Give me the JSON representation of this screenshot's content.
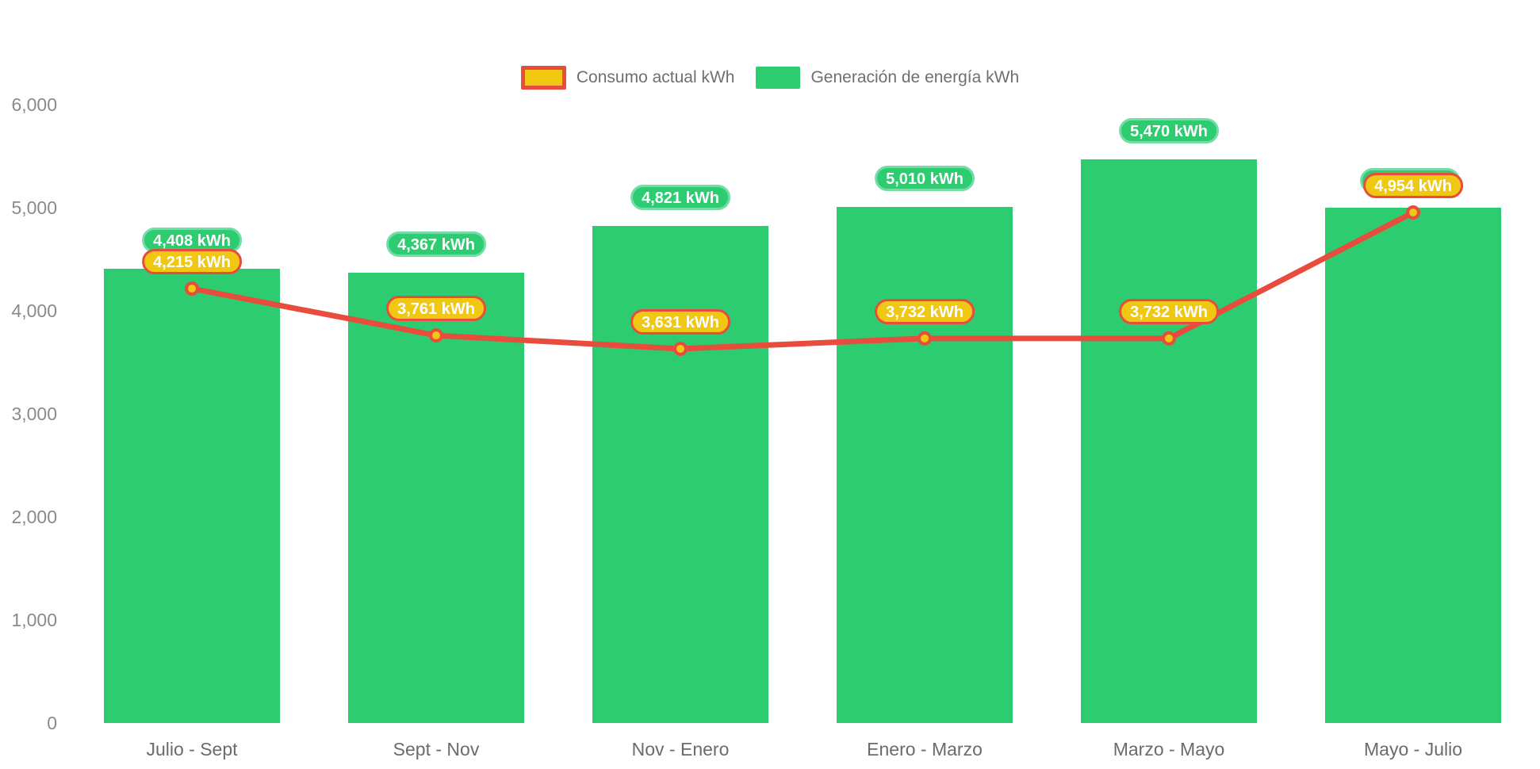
{
  "legend": {
    "consumo_label": "Consumo actual kWh",
    "generacion_label": "Generación de energía kWh"
  },
  "colors": {
    "bar_green": "#2ecc71",
    "pill_green_border": "#74dca6",
    "line_red": "#e74c3c",
    "marker_gold": "#f0c713",
    "pill_gold": "#f0c713",
    "y_axis_text": "#8a8a8a",
    "x_axis_text": "#6b6b6b",
    "legend_text": "#6f6f6f",
    "background": "#ffffff"
  },
  "chart_data": {
    "type": "bar",
    "title": "",
    "xlabel": "",
    "ylabel": "",
    "categories": [
      "Julio - Sept",
      "Sept - Nov",
      "Nov - Enero",
      "Enero - Marzo",
      "Marzo - Mayo",
      "Mayo - Julio"
    ],
    "series": [
      {
        "name": "Generación de energía kWh",
        "type": "bar",
        "color": "#2ecc71",
        "values": [
          4408,
          4367,
          4821,
          5010,
          5470,
          5000
        ],
        "data_labels": [
          "4,408 kWh",
          "4,367 kWh",
          "4,821 kWh",
          "5,010 kWh",
          "5,470 kWh",
          ""
        ],
        "labels_visible": [
          true,
          true,
          true,
          true,
          true,
          false
        ]
      },
      {
        "name": "Consumo actual kWh",
        "type": "line",
        "color": "#e74c3c",
        "values": [
          4215,
          3761,
          3631,
          3732,
          3732,
          4954
        ],
        "data_labels": [
          "4,215 kWh",
          "3,761 kWh",
          "3,631 kWh",
          "3,732 kWh",
          "3,732 kWh",
          "4,954 kWh"
        ],
        "labels_visible": [
          true,
          true,
          true,
          true,
          true,
          true
        ]
      }
    ],
    "y_ticks": [
      {
        "value": 0,
        "label": "0"
      },
      {
        "value": 1000,
        "label": "1,000"
      },
      {
        "value": 2000,
        "label": "2,000"
      },
      {
        "value": 3000,
        "label": "3,000"
      },
      {
        "value": 4000,
        "label": "4,000"
      },
      {
        "value": 5000,
        "label": "5,000"
      },
      {
        "value": 6000,
        "label": "6,000"
      }
    ],
    "ylim": [
      0,
      6000
    ],
    "grid": false,
    "legend_position": "top-center"
  }
}
